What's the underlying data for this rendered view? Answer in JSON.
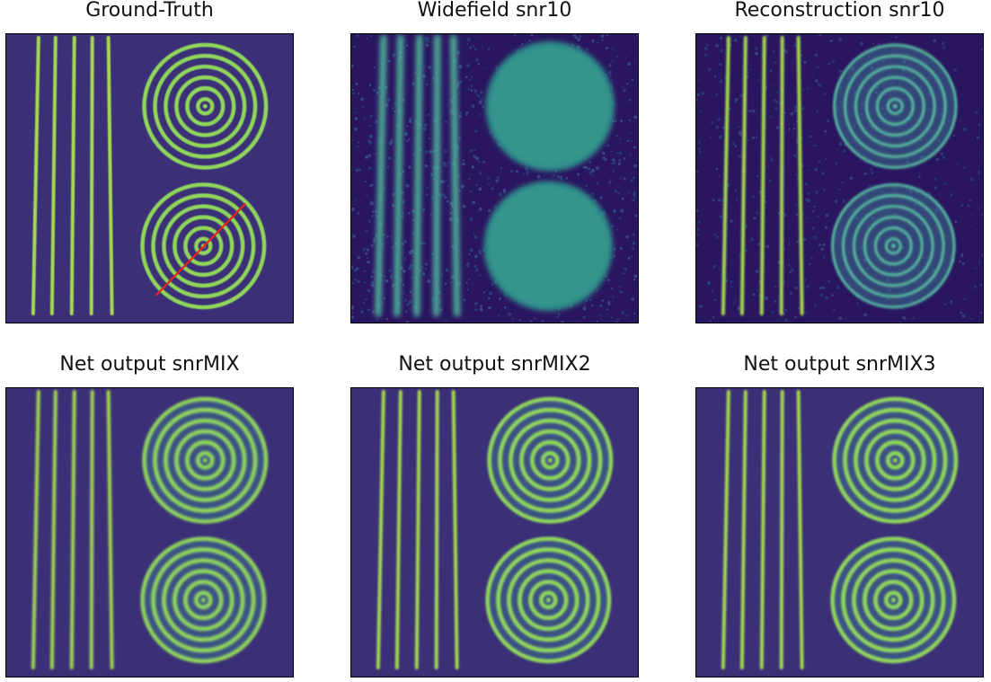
{
  "panels": [
    {
      "title": "Ground-Truth",
      "variant": "truth"
    },
    {
      "title": "Widefield snr10",
      "variant": "widefield"
    },
    {
      "title": "Reconstruction snr10",
      "variant": "recon"
    },
    {
      "title": "Net output snrMIX",
      "variant": "net1"
    },
    {
      "title": "Net output snrMIX2",
      "variant": "net2"
    },
    {
      "title": "Net output snrMIX3",
      "variant": "net3"
    }
  ],
  "colors": {
    "background": "#3b2f78",
    "dark_background": "#2a1560",
    "stripe": "#a6d94f",
    "ring": "#8fd65a",
    "disc_fill": "#2f8f8a",
    "line_profile": "#e8231b"
  }
}
